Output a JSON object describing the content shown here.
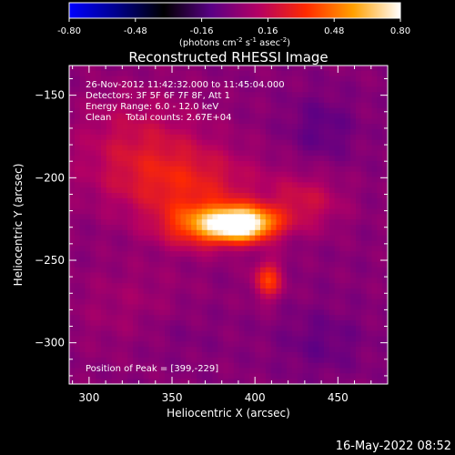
{
  "chart_data": {
    "type": "heatmap",
    "title": "Reconstructed RHESSI Image",
    "xlabel": "Heliocentric X (arcsec)",
    "ylabel": "Heliocentric Y (arcsec)",
    "xlim": [
      288,
      480
    ],
    "ylim": [
      -325,
      -132
    ],
    "x_ticks": [
      300,
      350,
      400,
      450
    ],
    "y_ticks": [
      -150,
      -200,
      -250,
      -300
    ],
    "colorbar": {
      "min": -0.8,
      "max": 0.8,
      "ticks": [
        "-0.80",
        "-0.48",
        "-0.16",
        "0.16",
        "0.48",
        "0.80"
      ],
      "units_text": "(photons cm",
      "units_exp1": "-2",
      "units_mid": " s",
      "units_exp2": "-1",
      "units_mid2": " asec",
      "units_exp3": "-2",
      "units_end": ")",
      "colors": [
        "#0000ff",
        "#00008c",
        "#000000",
        "#5a0085",
        "#b40064",
        "#ff2a00",
        "#ffa000",
        "#ffffff"
      ]
    },
    "annotations": [
      "26-Nov-2012 11:42:32.000 to 11:45:04.000",
      "Detectors: 3F 5F 6F 7F 8F, Att 1",
      "Energy Range: 6.0 - 12.0 keV",
      "Clean     Total counts: 2.67E+04"
    ],
    "peak_label": "Position of Peak = [399,-229]",
    "peak_position": [
      399,
      -229
    ],
    "sources": [
      {
        "x": 393,
        "y": -228,
        "sigma_x": 14,
        "sigma_y": 7,
        "amp": 0.8
      },
      {
        "x": 370,
        "y": -229,
        "sigma_x": 18,
        "sigma_y": 9,
        "amp": 0.42
      },
      {
        "x": 408,
        "y": -262,
        "sigma_x": 6,
        "sigma_y": 8,
        "amp": 0.36
      },
      {
        "x": 360,
        "y": -205,
        "sigma_x": 30,
        "sigma_y": 16,
        "amp": 0.24
      },
      {
        "x": 330,
        "y": -180,
        "sigma_x": 28,
        "sigma_y": 22,
        "amp": 0.17
      },
      {
        "x": 430,
        "y": -215,
        "sigma_x": 16,
        "sigma_y": 12,
        "amp": 0.18
      },
      {
        "x": 330,
        "y": -280,
        "sigma_x": 28,
        "sigma_y": 20,
        "amp": 0.08
      },
      {
        "x": 440,
        "y": -170,
        "sigma_x": 14,
        "sigma_y": 14,
        "amp": -0.1
      },
      {
        "x": 350,
        "y": -292,
        "sigma_x": 20,
        "sigma_y": 14,
        "amp": -0.06
      },
      {
        "x": 440,
        "y": -300,
        "sigma_x": 18,
        "sigma_y": 14,
        "amp": -0.08
      }
    ],
    "grid": false
  },
  "footer_timestamp": "16-May-2022 08:52"
}
